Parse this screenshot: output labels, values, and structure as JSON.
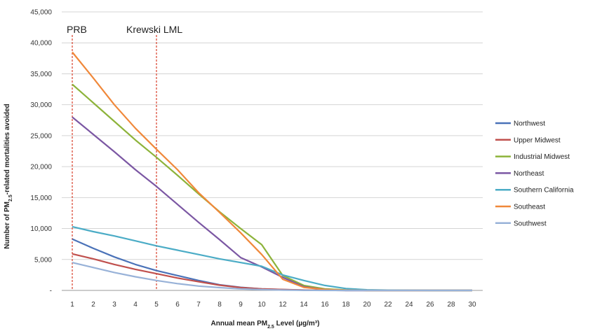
{
  "chart_data": {
    "type": "line",
    "xlabel": "Annual mean PM",
    "xlabel_sub": "2.5",
    "xlabel_suffix": " Level (µg/m³)",
    "ylabel": "Number of PM",
    "ylabel_sub": "2.5",
    "ylabel_suffix": "-related mortalities avoided",
    "x_categories": [
      "1",
      "2",
      "3",
      "4",
      "5",
      "6",
      "7",
      "8",
      "9",
      "10",
      "12",
      "14",
      "16",
      "18",
      "20",
      "22",
      "24",
      "26",
      "28",
      "30"
    ],
    "y_ticks": [
      {
        "value": 0,
        "label": "-"
      },
      {
        "value": 5000,
        "label": "5,000"
      },
      {
        "value": 10000,
        "label": "10,000"
      },
      {
        "value": 15000,
        "label": "15,000"
      },
      {
        "value": 20000,
        "label": "20,000"
      },
      {
        "value": 25000,
        "label": "25,000"
      },
      {
        "value": 30000,
        "label": "30,000"
      },
      {
        "value": 35000,
        "label": "35,000"
      },
      {
        "value": 40000,
        "label": "40,000"
      },
      {
        "value": 45000,
        "label": "45,000"
      }
    ],
    "ylim": [
      0,
      45000
    ],
    "grid": "horizontal",
    "legend_position": "right",
    "annotations": [
      {
        "label": "PRB",
        "x": 1
      },
      {
        "label": "Krewski LML",
        "x": 5
      }
    ],
    "series": [
      {
        "name": "Northwest",
        "color": "#4a72b8",
        "values": [
          8300,
          6800,
          5400,
          4200,
          3200,
          2400,
          1600,
          900,
          500,
          250,
          120,
          50,
          20,
          0,
          0,
          0,
          0,
          0,
          0,
          0
        ]
      },
      {
        "name": "Upper Midwest",
        "color": "#c0504d",
        "values": [
          5900,
          5100,
          4200,
          3400,
          2700,
          2000,
          1400,
          850,
          450,
          250,
          150,
          60,
          20,
          0,
          0,
          0,
          0,
          0,
          0,
          0
        ]
      },
      {
        "name": "Industrial Midwest",
        "color": "#8db33a",
        "values": [
          33300,
          30300,
          27300,
          24300,
          21500,
          18600,
          15600,
          12700,
          10000,
          7400,
          2400,
          800,
          250,
          80,
          0,
          0,
          0,
          0,
          0,
          0
        ]
      },
      {
        "name": "Northeast",
        "color": "#7b57a3",
        "values": [
          28000,
          25200,
          22400,
          19500,
          16800,
          13900,
          11000,
          8200,
          5300,
          3800,
          2100,
          600,
          150,
          0,
          0,
          0,
          0,
          0,
          0,
          0
        ]
      },
      {
        "name": "Southern California",
        "color": "#4bacc6",
        "values": [
          10300,
          9500,
          8800,
          8000,
          7200,
          6500,
          5800,
          5100,
          4500,
          3900,
          2500,
          1600,
          800,
          300,
          100,
          40,
          20,
          0,
          0,
          0
        ]
      },
      {
        "name": "Southeast",
        "color": "#f0883a",
        "values": [
          38500,
          34300,
          30000,
          26200,
          22800,
          19500,
          15800,
          12600,
          9300,
          5800,
          1800,
          500,
          150,
          50,
          0,
          0,
          0,
          0,
          0,
          0
        ]
      },
      {
        "name": "Southwest",
        "color": "#98b2d8",
        "values": [
          4500,
          3700,
          2900,
          2200,
          1600,
          1100,
          700,
          450,
          250,
          120,
          60,
          20,
          0,
          0,
          0,
          0,
          0,
          0,
          0,
          0
        ]
      }
    ]
  }
}
